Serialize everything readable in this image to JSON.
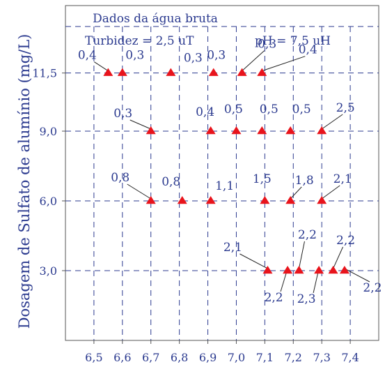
{
  "chart_data": {
    "type": "scatter",
    "title": "",
    "xlabel": "",
    "ylabel": "Dosagem de Sulfato de alumínio (mg/L)",
    "info_box": {
      "heading": "Dados da água bruta",
      "turbidity": "Turbidez = 2,5 uT",
      "ph": "pH = 7,5 uH"
    },
    "xlim": [
      6.4,
      7.5
    ],
    "ylim": [
      0,
      14.4
    ],
    "x_ticks": [
      {
        "v": 6.5,
        "label": "6,5"
      },
      {
        "v": 6.6,
        "label": "6,6"
      },
      {
        "v": 6.7,
        "label": "6,7"
      },
      {
        "v": 6.8,
        "label": "6,8"
      },
      {
        "v": 6.9,
        "label": "6,9"
      },
      {
        "v": 7.0,
        "label": "7,0"
      },
      {
        "v": 7.1,
        "label": "7,1"
      },
      {
        "v": 7.2,
        "label": "7,2"
      },
      {
        "v": 7.3,
        "label": "7,3"
      },
      {
        "v": 7.4,
        "label": "7,4"
      }
    ],
    "y_ticks": [
      {
        "v": 3.0,
        "label": "3,0"
      },
      {
        "v": 6.0,
        "label": "6,0"
      },
      {
        "v": 9.0,
        "label": "9,0"
      },
      {
        "v": 11.5,
        "label": "11,5"
      }
    ],
    "grid": true,
    "marker_color": "#e8141c",
    "text_color": "#2b3a8f",
    "points": [
      {
        "x": 6.55,
        "y": 11.5,
        "label": "0,4"
      },
      {
        "x": 6.6,
        "y": 11.5,
        "label": "0,3"
      },
      {
        "x": 6.77,
        "y": 11.5,
        "label": "0,3"
      },
      {
        "x": 6.92,
        "y": 11.5,
        "label": "0,3"
      },
      {
        "x": 7.02,
        "y": 11.5,
        "label": "0,3"
      },
      {
        "x": 7.09,
        "y": 11.5,
        "label": "0,4"
      },
      {
        "x": 6.7,
        "y": 9.0,
        "label": "0,3"
      },
      {
        "x": 6.91,
        "y": 9.0,
        "label": "0,4"
      },
      {
        "x": 7.0,
        "y": 9.0,
        "label": "0,5"
      },
      {
        "x": 7.09,
        "y": 9.0,
        "label": "0,5"
      },
      {
        "x": 7.19,
        "y": 9.0,
        "label": "0,5"
      },
      {
        "x": 7.3,
        "y": 9.0,
        "label": "2,5"
      },
      {
        "x": 6.7,
        "y": 6.0,
        "label": "0,8"
      },
      {
        "x": 6.81,
        "y": 6.0,
        "label": "0,8"
      },
      {
        "x": 6.91,
        "y": 6.0,
        "label": "1,1"
      },
      {
        "x": 7.1,
        "y": 6.0,
        "label": "1,5"
      },
      {
        "x": 7.19,
        "y": 6.0,
        "label": "1,8"
      },
      {
        "x": 7.3,
        "y": 6.0,
        "label": "2,1"
      },
      {
        "x": 7.11,
        "y": 3.0,
        "label": "2,1"
      },
      {
        "x": 7.18,
        "y": 3.0,
        "label": "2,2"
      },
      {
        "x": 7.22,
        "y": 3.0,
        "label": "2,2"
      },
      {
        "x": 7.29,
        "y": 3.0,
        "label": "2,3"
      },
      {
        "x": 7.34,
        "y": 3.0,
        "label": "2,2"
      },
      {
        "x": 7.38,
        "y": 3.0,
        "label": "2,2"
      }
    ]
  }
}
